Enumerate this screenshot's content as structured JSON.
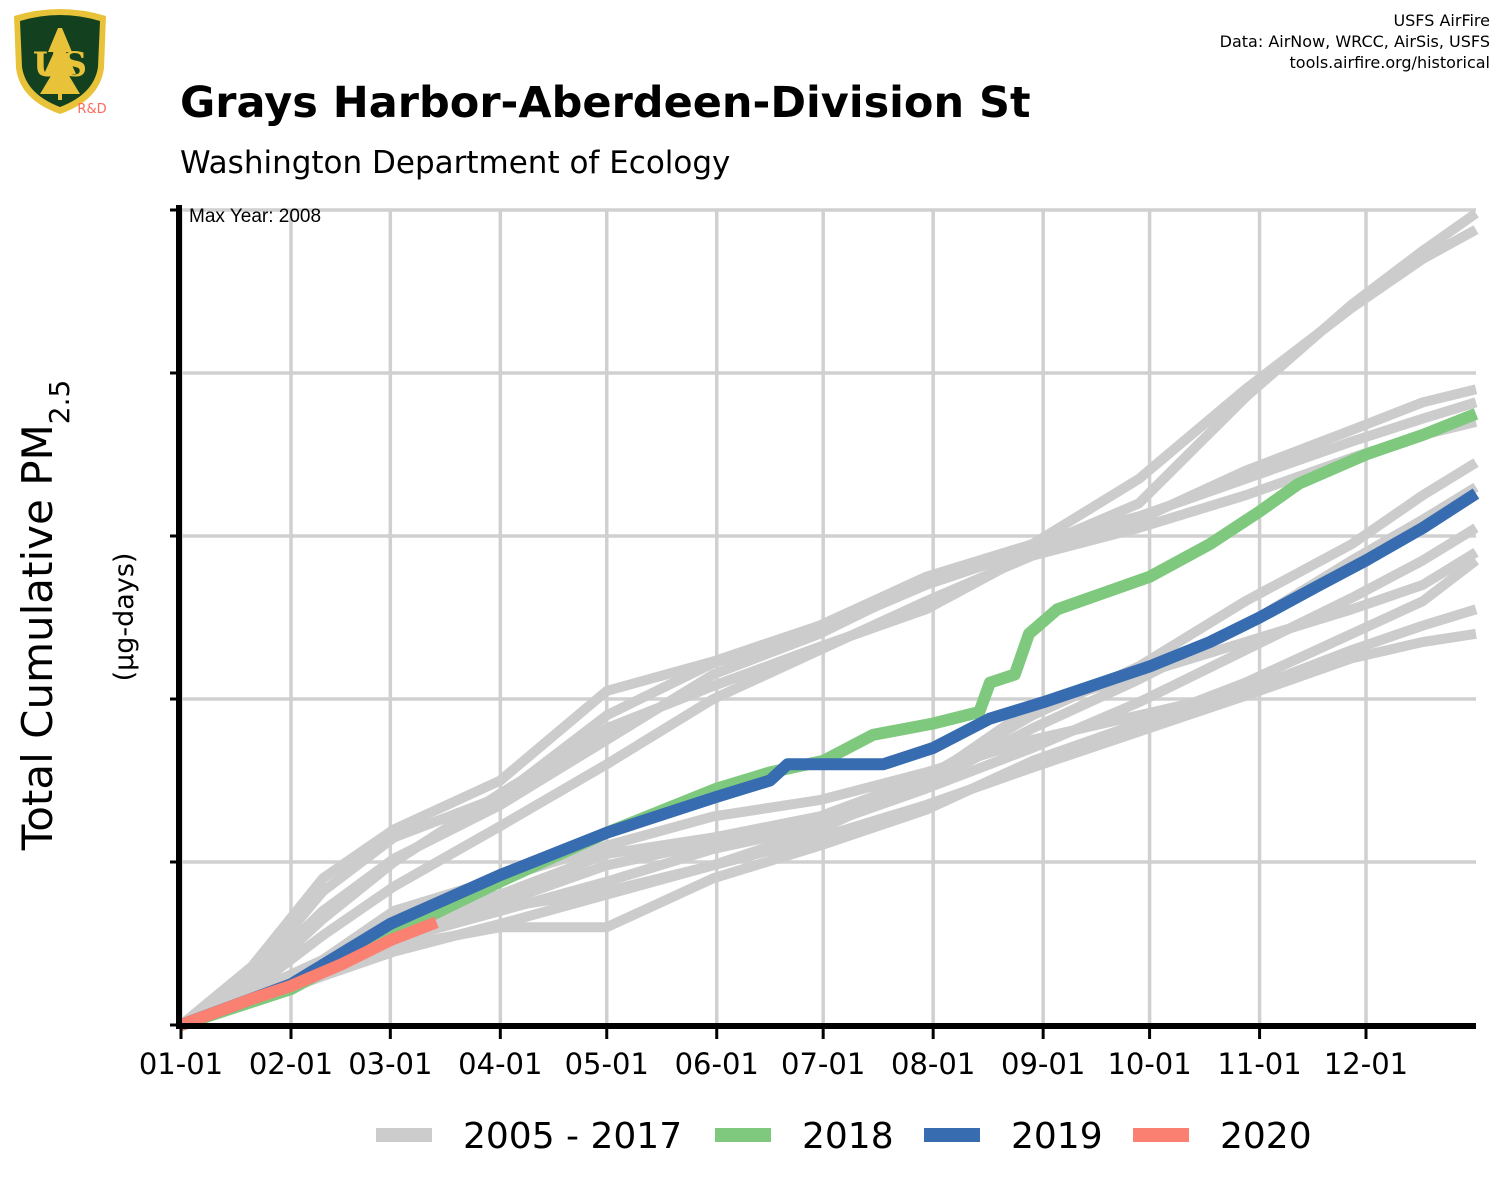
{
  "header": {
    "title": "Grays Harbor-Aberdeen-Division St",
    "subtitle": "Washington Department of Ecology",
    "credits": [
      "USFS AirFire",
      "Data: AirNow, WRCC, AirSis, USFS",
      "tools.airfire.org/historical"
    ],
    "logo": {
      "icon": "usfs-shield-logo",
      "text": "US",
      "tag": "R&D"
    }
  },
  "chart_data": {
    "type": "line",
    "ylabel_main": "Total Cumulative PM",
    "ylabel_sub": "2.5",
    "ylabel_units": "(µg-days)",
    "annotation": "Max Year: 2008",
    "x_ticks": [
      "01-01",
      "02-01",
      "03-01",
      "04-01",
      "05-01",
      "06-01",
      "07-01",
      "08-01",
      "09-01",
      "10-01",
      "11-01",
      "12-01"
    ],
    "x_tick_days": [
      0,
      31,
      59,
      90,
      120,
      151,
      181,
      212,
      243,
      273,
      304,
      334
    ],
    "xlim": [
      0,
      365
    ],
    "ylim": [
      0,
      5
    ],
    "y_ticks_unlabeled": [
      0,
      1,
      2,
      3,
      4,
      5
    ],
    "grid": true,
    "legend": {
      "placement": "bottom",
      "entries": [
        "2005 - 2017",
        "2018",
        "2019",
        "2020"
      ]
    },
    "series_colors": {
      "history": "#cccccc",
      "2018": "#7fc97f",
      "2019": "#386cb0",
      "2020": "#fa8072"
    },
    "history": [
      {
        "x": [
          0,
          20,
          40,
          60,
          90,
          120,
          150,
          180,
          210,
          240,
          270,
          300,
          330,
          350,
          365
        ],
        "y": [
          0,
          0.36,
          0.9,
          1.2,
          1.5,
          2.05,
          2.23,
          2.45,
          2.75,
          2.95,
          3.35,
          3.9,
          4.4,
          4.7,
          4.88
        ]
      },
      {
        "x": [
          0,
          20,
          40,
          60,
          90,
          120,
          150,
          180,
          210,
          240,
          270,
          300,
          330,
          350,
          365
        ],
        "y": [
          0,
          0.3,
          0.82,
          1.15,
          1.4,
          1.9,
          2.22,
          2.42,
          2.7,
          2.92,
          3.2,
          3.85,
          4.42,
          4.75,
          4.98
        ]
      },
      {
        "x": [
          0,
          20,
          40,
          60,
          90,
          120,
          150,
          180,
          210,
          240,
          270,
          300,
          330,
          350,
          365
        ],
        "y": [
          0,
          0.25,
          0.65,
          1.0,
          1.42,
          1.82,
          2.08,
          2.32,
          2.55,
          2.9,
          3.1,
          3.4,
          3.65,
          3.82,
          3.9
        ]
      },
      {
        "x": [
          0,
          20,
          40,
          60,
          90,
          120,
          150,
          180,
          210,
          240,
          270,
          300,
          330,
          350,
          365
        ],
        "y": [
          0,
          0.28,
          0.7,
          1.02,
          1.35,
          1.75,
          2.15,
          2.4,
          2.72,
          2.95,
          3.12,
          3.35,
          3.58,
          3.72,
          3.82
        ]
      },
      {
        "x": [
          0,
          20,
          40,
          60,
          90,
          120,
          150,
          180,
          210,
          240,
          270,
          300,
          330,
          350,
          365
        ],
        "y": [
          0,
          0.22,
          0.55,
          0.85,
          1.22,
          1.6,
          2.0,
          2.3,
          2.6,
          2.88,
          3.05,
          3.25,
          3.48,
          3.62,
          3.7
        ]
      },
      {
        "x": [
          0,
          20,
          40,
          60,
          90,
          120,
          150,
          180,
          210,
          240,
          270,
          300,
          330,
          350,
          365
        ],
        "y": [
          0,
          0.2,
          0.38,
          0.62,
          0.8,
          1.05,
          1.15,
          1.28,
          1.52,
          1.9,
          2.2,
          2.6,
          2.95,
          3.25,
          3.45
        ]
      },
      {
        "x": [
          0,
          20,
          40,
          60,
          90,
          120,
          150,
          180,
          210,
          240,
          270,
          300,
          330,
          350,
          365
        ],
        "y": [
          0,
          0.18,
          0.35,
          0.58,
          0.75,
          0.98,
          1.12,
          1.25,
          1.48,
          1.82,
          2.12,
          2.45,
          2.85,
          3.1,
          3.3
        ]
      },
      {
        "x": [
          0,
          20,
          40,
          60,
          90,
          120,
          150,
          180,
          210,
          240,
          270,
          300,
          330,
          350,
          365
        ],
        "y": [
          0,
          0.16,
          0.32,
          0.52,
          0.7,
          0.88,
          1.08,
          1.22,
          1.45,
          1.7,
          1.98,
          2.3,
          2.62,
          2.85,
          3.05
        ]
      },
      {
        "x": [
          0,
          20,
          40,
          60,
          90,
          120,
          150,
          180,
          210,
          240,
          270,
          300,
          330,
          350,
          365
        ],
        "y": [
          0,
          0.15,
          0.3,
          0.48,
          0.6,
          0.6,
          0.9,
          1.1,
          1.32,
          1.62,
          1.85,
          2.1,
          2.4,
          2.6,
          2.85
        ]
      },
      {
        "x": [
          0,
          20,
          40,
          60,
          90,
          120,
          150,
          180,
          210,
          240,
          270,
          300,
          330,
          350,
          365
        ],
        "y": [
          0,
          0.2,
          0.4,
          0.7,
          0.9,
          1.1,
          1.28,
          1.38,
          1.55,
          1.75,
          1.9,
          2.05,
          2.3,
          2.45,
          2.55
        ]
      },
      {
        "x": [
          0,
          20,
          40,
          60,
          90,
          120,
          150,
          180,
          210,
          240,
          270,
          300,
          330,
          350,
          365
        ],
        "y": [
          0,
          0.17,
          0.36,
          0.55,
          0.72,
          0.82,
          0.98,
          1.15,
          1.35,
          1.58,
          1.8,
          2.02,
          2.25,
          2.35,
          2.4
        ]
      },
      {
        "x": [
          0,
          20,
          40,
          60,
          90,
          120,
          150,
          180,
          210,
          240,
          270,
          300,
          330,
          350,
          365
        ],
        "y": [
          0,
          0.14,
          0.3,
          0.45,
          0.62,
          0.8,
          0.98,
          1.2,
          1.5,
          1.95,
          2.15,
          2.35,
          2.55,
          2.7,
          2.9
        ]
      }
    ],
    "series": [
      {
        "name": "2018",
        "x": [
          0,
          31,
          59,
          90,
          120,
          151,
          166,
          181,
          195,
          212,
          225,
          228,
          235,
          239,
          247,
          273,
          290,
          304,
          315,
          334,
          350,
          365
        ],
        "y": [
          0,
          0.22,
          0.55,
          0.88,
          1.18,
          1.45,
          1.55,
          1.62,
          1.78,
          1.85,
          1.92,
          2.1,
          2.15,
          2.4,
          2.55,
          2.75,
          2.95,
          3.15,
          3.32,
          3.5,
          3.62,
          3.75
        ]
      },
      {
        "name": "2019",
        "x": [
          0,
          31,
          59,
          90,
          120,
          151,
          166,
          171,
          181,
          198,
          212,
          228,
          243,
          273,
          290,
          304,
          321,
          334,
          350,
          365
        ],
        "y": [
          0,
          0.25,
          0.62,
          0.92,
          1.18,
          1.4,
          1.5,
          1.6,
          1.6,
          1.6,
          1.7,
          1.88,
          1.98,
          2.2,
          2.35,
          2.5,
          2.7,
          2.85,
          3.05,
          3.26
        ]
      },
      {
        "name": "2020",
        "x": [
          0,
          10,
          20,
          31,
          45,
          59,
          72
        ],
        "y": [
          0,
          0.08,
          0.16,
          0.24,
          0.37,
          0.52,
          0.63
        ]
      }
    ]
  }
}
